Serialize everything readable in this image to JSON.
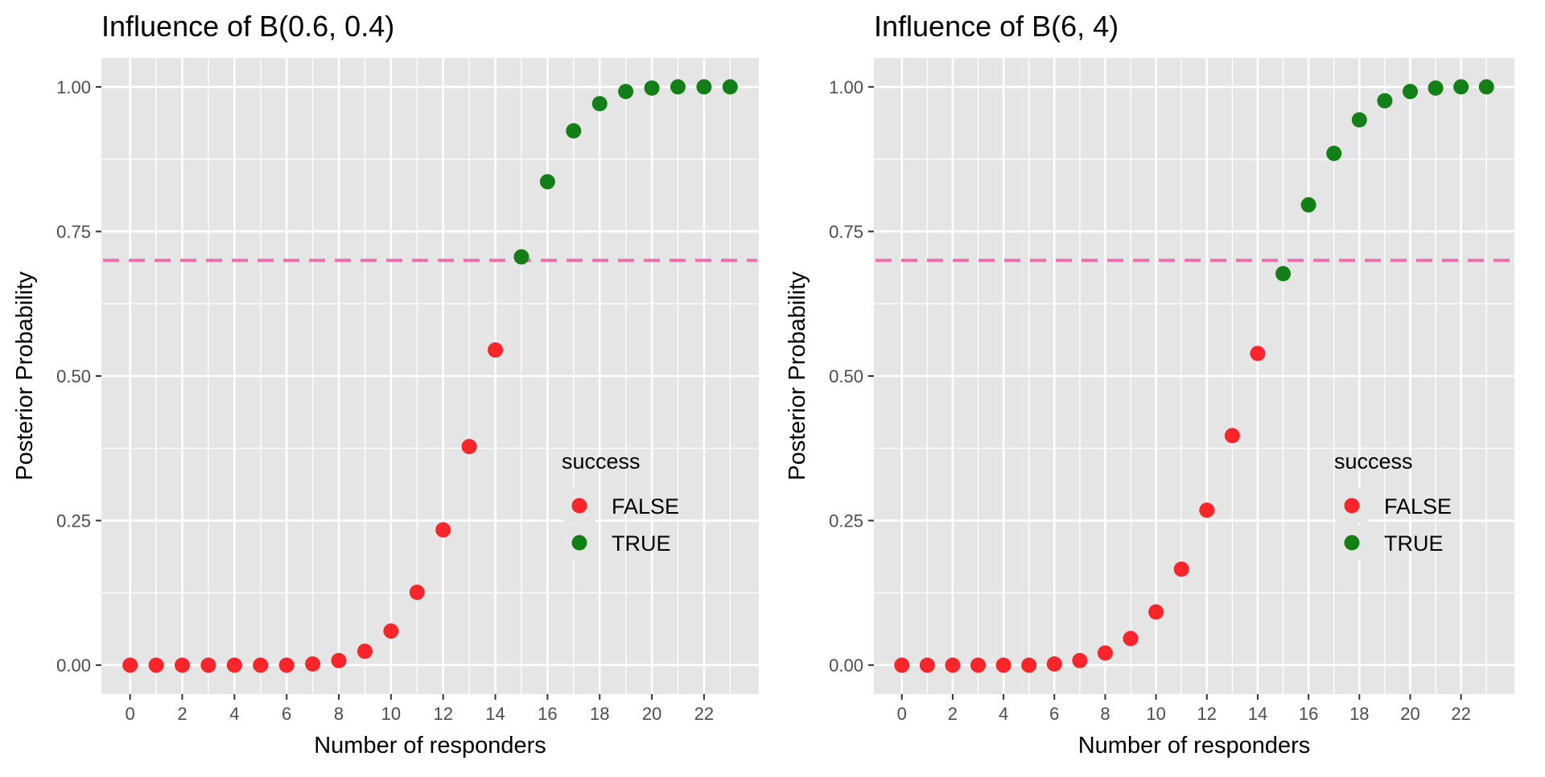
{
  "chart_data": [
    {
      "type": "scatter",
      "title": "Influence of B(0.6, 0.4)",
      "xlabel": "Number of responders",
      "ylabel": "Posterior Probability",
      "x_ticks": [
        "0",
        "2",
        "4",
        "6",
        "8",
        "10",
        "12",
        "14",
        "16",
        "18",
        "20",
        "22"
      ],
      "y_ticks": [
        "0.00",
        "0.25",
        "0.50",
        "0.75",
        "1.00"
      ],
      "xlim": [
        -1.1,
        24.1
      ],
      "ylim": [
        -0.05,
        1.05
      ],
      "threshold": 0.7,
      "legend": {
        "title": "success",
        "entries": [
          "FALSE",
          "TRUE"
        ],
        "position": "right"
      },
      "series": [
        {
          "name": "FALSE",
          "x": [
            0,
            1,
            2,
            3,
            4,
            5,
            6,
            7,
            8,
            9,
            10,
            11,
            12,
            13,
            14
          ],
          "y": [
            0.0,
            0.0,
            0.0,
            0.0,
            0.0,
            0.0,
            0.0,
            0.002,
            0.008,
            0.024,
            0.059,
            0.126,
            0.234,
            0.378,
            0.545
          ]
        },
        {
          "name": "TRUE",
          "x": [
            15,
            16,
            17,
            18,
            19,
            20,
            21,
            22,
            23
          ],
          "y": [
            0.706,
            0.836,
            0.924,
            0.971,
            0.992,
            0.998,
            1.0,
            1.0,
            1.0
          ]
        }
      ]
    },
    {
      "type": "scatter",
      "title": "Influence of B(6, 4)",
      "xlabel": "Number of responders",
      "ylabel": "Posterior Probability",
      "x_ticks": [
        "0",
        "2",
        "4",
        "6",
        "8",
        "10",
        "12",
        "14",
        "16",
        "18",
        "20",
        "22"
      ],
      "y_ticks": [
        "0.00",
        "0.25",
        "0.50",
        "0.75",
        "1.00"
      ],
      "xlim": [
        -1.1,
        24.1
      ],
      "ylim": [
        -0.05,
        1.05
      ],
      "threshold": 0.7,
      "legend": {
        "title": "success",
        "entries": [
          "FALSE",
          "TRUE"
        ],
        "position": "right"
      },
      "series": [
        {
          "name": "FALSE",
          "x": [
            0,
            1,
            2,
            3,
            4,
            5,
            6,
            7,
            8,
            9,
            10,
            11,
            12,
            13,
            14
          ],
          "y": [
            0.0,
            0.0,
            0.0,
            0.0,
            0.0,
            0.0,
            0.002,
            0.008,
            0.021,
            0.046,
            0.092,
            0.166,
            0.268,
            0.397,
            0.539
          ]
        },
        {
          "name": "TRUE",
          "x": [
            15,
            16,
            17,
            18,
            19,
            20,
            21,
            22,
            23
          ],
          "y": [
            0.677,
            0.796,
            0.885,
            0.943,
            0.976,
            0.992,
            0.998,
            1.0,
            1.0
          ]
        }
      ]
    }
  ],
  "colors": {
    "false": "#f8262a",
    "true": "#137f17",
    "threshold": "#ec6fae",
    "panel": "#e5e5e5",
    "grid": "#ffffff"
  }
}
